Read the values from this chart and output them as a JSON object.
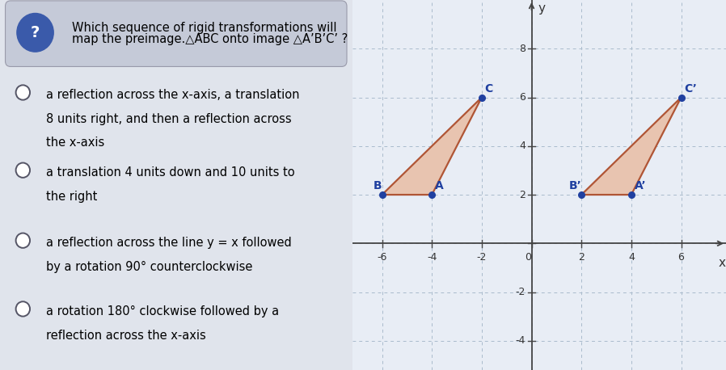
{
  "options": [
    "a reflection across the x-axis, a translation\n8 units right, and then a reflection across\nthe x-axis",
    "a translation 4 units down and 10 units to\nthe right",
    "a reflection across the line y = x followed\nby a rotation 90° counterclockwise",
    "a rotation 180° clockwise followed by a\nreflection across the x-axis"
  ],
  "triangle_ABC": {
    "A": [
      -4,
      2
    ],
    "B": [
      -6,
      2
    ],
    "C": [
      -2,
      6
    ]
  },
  "triangle_A1B1C1": {
    "A1": [
      4,
      2
    ],
    "B1": [
      2,
      2
    ],
    "C1": [
      6,
      6
    ]
  },
  "triangle_edge_color": "#b05535",
  "triangle_fill": "#e8c4b0",
  "point_color": "#2040a0",
  "label_color": "#2040a0",
  "grid_color": "#aabbcc",
  "axis_color": "#444444",
  "graph_bg": "#e8edf5",
  "left_bg": "#e0e4ec",
  "question_bg": "#c5cad8",
  "question_icon_color": "#3a5aaa",
  "xlim": [
    -7.2,
    7.8
  ],
  "ylim": [
    -5.2,
    10.0
  ],
  "xticks": [
    -6,
    -4,
    -2,
    0,
    2,
    4,
    6
  ],
  "yticks": [
    -4,
    -2,
    0,
    2,
    4,
    6,
    8
  ]
}
